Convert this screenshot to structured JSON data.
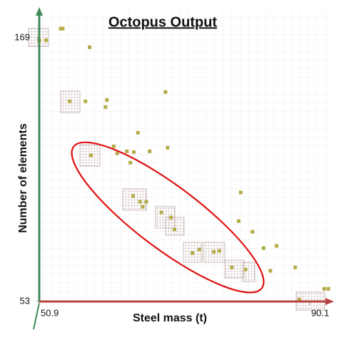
{
  "chart_data": {
    "type": "scatter",
    "title": "Octopus Output",
    "x_label": "Steel mass (t)",
    "y_label": "Number of elements",
    "x": [
      50.9,
      51.9,
      54.0,
      54.3,
      58.2,
      55.3,
      57.6,
      60.7,
      60.5,
      69.2,
      65.2,
      58.4,
      61.7,
      62.2,
      63.6,
      64.6,
      64.1,
      66.9,
      69.5,
      64.5,
      65.5,
      66.4,
      65.9,
      68.6,
      70.0,
      70.5,
      73.1,
      74.1,
      76.2,
      77.0,
      80.1,
      79.8,
      81.8,
      78.8,
      80.8,
      83.4,
      85.3,
      84.4,
      88.0,
      88.6,
      92.2,
      92.8
    ],
    "values": [
      168,
      168,
      173.1,
      173.1,
      164.9,
      141.1,
      141.1,
      141.7,
      138.6,
      145.2,
      127.3,
      117.3,
      121.3,
      118.2,
      119.1,
      118.8,
      114.1,
      119.1,
      120.7,
      99.4,
      96.9,
      96.9,
      94.7,
      92.2,
      90.0,
      84.7,
      74.3,
      75.9,
      74.9,
      75.3,
      101.0,
      88.4,
      83.7,
      68.0,
      67.1,
      76.5,
      77.5,
      66.5,
      68.0,
      53.9,
      58.6,
      58.6
    ],
    "color": "#b3ab45",
    "xlim": [
      50.9,
      93
    ],
    "ylim": [
      53,
      181
    ],
    "xticks": [
      50.9,
      90.1
    ],
    "yticks": [
      53,
      169
    ]
  }
}
